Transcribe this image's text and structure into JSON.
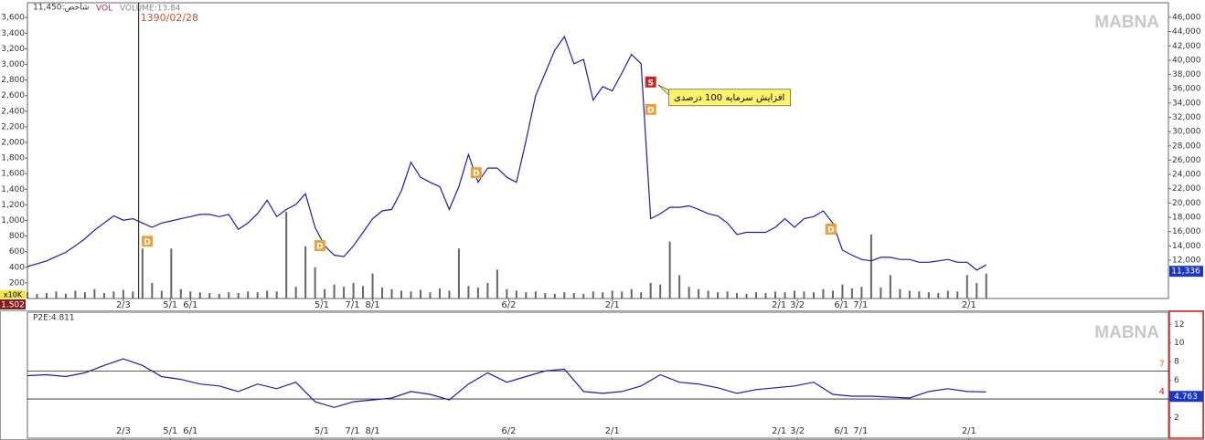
{
  "watermark": "MABNA",
  "chart_data": [
    {
      "type": "line",
      "title": "شاخص:11,450",
      "volume_title": "VOLUME:13.84",
      "volume_unit": "x10K",
      "volume_last": "1.502",
      "crosshair": {
        "x": 11.6,
        "label": "1390/02/28"
      },
      "annotation": "افزایش سرمایه 100 درصدی",
      "events": [
        {
          "label": "D",
          "x": 12.5
        },
        {
          "label": "D",
          "x": 30.5
        },
        {
          "label": "D",
          "x": 46.8
        },
        {
          "label": "S",
          "x": 65
        },
        {
          "label": "D",
          "x": 65
        },
        {
          "label": "D",
          "x": 83.8
        }
      ],
      "x": [
        0,
        1,
        2,
        3,
        4,
        5,
        6,
        7,
        8,
        9,
        10,
        11,
        12,
        13,
        14,
        15,
        16,
        17,
        18,
        19,
        20,
        21,
        22,
        23,
        24,
        25,
        26,
        27,
        28,
        29,
        30,
        31,
        32,
        33,
        34,
        35,
        36,
        37,
        38,
        39,
        40,
        41,
        42,
        43,
        44,
        45,
        46,
        47,
        48,
        49,
        50,
        51,
        52,
        53,
        54,
        55,
        56,
        57,
        58,
        59,
        60,
        61,
        62,
        63,
        64,
        65,
        66,
        67,
        68,
        69,
        70,
        71,
        72,
        73,
        74,
        75,
        76,
        77,
        78,
        79,
        80,
        81,
        82,
        83,
        84,
        85,
        86,
        87,
        88,
        89,
        90,
        91,
        92,
        93,
        94,
        95,
        96,
        97,
        98,
        99,
        100
      ],
      "xlim": [
        0,
        119
      ],
      "xticks": [
        {
          "value": 10,
          "label": "2/3"
        },
        {
          "value": 14.9,
          "label": "5/1"
        },
        {
          "value": 17,
          "label": "6/1"
        },
        {
          "value": 30.7,
          "label": "5/1"
        },
        {
          "value": 33.9,
          "label": "7/1"
        },
        {
          "value": 36,
          "label": "8/1"
        },
        {
          "value": 50.2,
          "label": "6/2"
        },
        {
          "value": 61,
          "label": "2/1"
        },
        {
          "value": 78.4,
          "label": "2/1"
        },
        {
          "value": 80.3,
          "label": "3/2"
        },
        {
          "value": 84.9,
          "label": "6/1"
        },
        {
          "value": 86.9,
          "label": "7/1"
        },
        {
          "value": 98.2,
          "label": "2/1"
        }
      ],
      "ylim": [
        0,
        3790
      ],
      "yticks": [
        200,
        400,
        600,
        800,
        {
          "value": 1000,
          "label": "1,000"
        },
        {
          "value": 1200,
          "label": "1,200"
        },
        {
          "value": 1400,
          "label": "1,400"
        },
        {
          "value": 1600,
          "label": "1,600"
        },
        {
          "value": 1800,
          "label": "1,800"
        },
        {
          "value": 2000,
          "label": "2,000"
        },
        {
          "value": 2200,
          "label": "2,200"
        },
        {
          "value": 2400,
          "label": "2,400"
        },
        {
          "value": 2600,
          "label": "2,600"
        },
        {
          "value": 2800,
          "label": "2,800"
        },
        {
          "value": 3000,
          "label": "3,000"
        },
        {
          "value": 3200,
          "label": "3,200"
        },
        {
          "value": 3400,
          "label": "3,400"
        },
        {
          "value": 3600,
          "label": "3,600"
        }
      ],
      "y2lim": [
        6630,
        48040
      ],
      "y2ticks": [
        {
          "value": 12000,
          "label": "12,000"
        },
        {
          "value": 14000,
          "label": "14,000"
        },
        {
          "value": 16000,
          "label": "16,000"
        },
        {
          "value": 18000,
          "label": "18,000"
        },
        {
          "value": 20000,
          "label": "20,000"
        },
        {
          "value": 22000,
          "label": "22,000"
        },
        {
          "value": 24000,
          "label": "24,000"
        },
        {
          "value": 26000,
          "label": "26,000"
        },
        {
          "value": 28000,
          "label": "28,000"
        },
        {
          "value": 30000,
          "label": "30,000"
        },
        {
          "value": 32000,
          "label": "32,000"
        },
        {
          "value": 34000,
          "label": "34,000"
        },
        {
          "value": 36000,
          "label": "36,000"
        },
        {
          "value": 38000,
          "label": "38,000"
        },
        {
          "value": 40000,
          "label": "40,000"
        },
        {
          "value": 42000,
          "label": "42,000"
        },
        {
          "value": 44000,
          "label": "44,000"
        },
        {
          "value": 46000,
          "label": "46,000"
        }
      ],
      "series": [
        {
          "type": "bar",
          "name": "VOL",
          "color": "#666666",
          "values": [
            80,
            60,
            70,
            90,
            60,
            100,
            80,
            120,
            70,
            90,
            110,
            90,
            640,
            200,
            100,
            640,
            120,
            90,
            80,
            70,
            60,
            80,
            70,
            90,
            80,
            100,
            90,
            1110,
            150,
            670,
            400,
            120,
            180,
            150,
            200,
            160,
            320,
            140,
            120,
            100,
            90,
            110,
            80,
            130,
            100,
            640,
            160,
            140,
            200,
            370,
            120,
            100,
            80,
            90,
            70,
            60,
            80,
            70,
            60,
            90,
            80,
            100,
            90,
            120,
            80,
            200,
            180,
            730,
            300,
            150,
            120,
            100,
            80,
            90,
            70,
            60,
            80,
            70,
            90,
            80,
            100,
            90,
            80,
            120,
            100,
            180,
            130,
            150,
            820,
            140,
            300,
            120,
            100,
            90,
            80,
            70,
            100,
            90,
            300,
            200,
            320
          ]
        },
        {
          "type": "line",
          "axis": "y2",
          "color": "#1c1cb4",
          "end_label": "11,336",
          "values": [
            11100,
            11500,
            11900,
            12500,
            13100,
            14000,
            15000,
            16200,
            17200,
            18200,
            17600,
            17800,
            17200,
            16600,
            17200,
            17500,
            17800,
            18100,
            18400,
            18400,
            18100,
            18400,
            16300,
            17200,
            18500,
            20400,
            18100,
            19100,
            19800,
            21300,
            16600,
            14000,
            12700,
            12500,
            14000,
            15900,
            17800,
            18900,
            19100,
            21700,
            25700,
            23600,
            22900,
            22300,
            19100,
            22300,
            26800,
            22900,
            24900,
            24900,
            23600,
            22900,
            28700,
            35000,
            38200,
            41400,
            43300,
            39500,
            40100,
            34400,
            36300,
            35700,
            38200,
            40800,
            39500,
            17800,
            18500,
            19400,
            19400,
            19600,
            19100,
            18500,
            18200,
            17200,
            15600,
            15900,
            15900,
            15900,
            16600,
            17800,
            16600,
            17800,
            18100,
            18900,
            17200,
            13400,
            12700,
            12100,
            11900,
            12400,
            12400,
            12100,
            12100,
            11700,
            11700,
            11900,
            12100,
            11700,
            11700,
            10600,
            11336
          ]
        }
      ]
    },
    {
      "type": "line",
      "title": "P2E:4.811",
      "x": [
        0,
        2,
        4,
        6,
        8,
        10,
        12,
        14,
        16,
        18,
        20,
        22,
        24,
        26,
        28,
        30,
        32,
        34,
        36,
        38,
        40,
        42,
        44,
        46,
        48,
        50,
        52,
        54,
        56,
        58,
        60,
        62,
        64,
        66,
        68,
        70,
        72,
        74,
        76,
        78,
        80,
        82,
        84,
        86,
        88,
        90,
        92,
        94,
        96,
        98,
        100
      ],
      "xlim": [
        0,
        119
      ],
      "ylim": [
        -0.2,
        13.3
      ],
      "yticks": [
        2,
        4,
        6,
        8,
        10,
        12
      ],
      "levels": [
        7,
        4
      ],
      "level_colors": [
        "#e07b20",
        "#d42020"
      ],
      "series": [
        {
          "type": "line",
          "color": "#1c1cb4",
          "end_label": "4.763",
          "values": [
            6.5,
            6.6,
            6.4,
            6.8,
            7.6,
            8.3,
            7.6,
            6.4,
            6.1,
            5.6,
            5.4,
            4.8,
            5.6,
            5.1,
            5.8,
            3.7,
            3.1,
            3.7,
            3.9,
            4.1,
            4.8,
            4.5,
            3.9,
            5.6,
            6.8,
            5.8,
            6.4,
            7.0,
            7.2,
            4.8,
            4.6,
            4.8,
            5.4,
            6.6,
            5.8,
            5.6,
            5.2,
            4.6,
            5.0,
            5.2,
            5.4,
            5.8,
            4.5,
            4.3,
            4.3,
            4.2,
            4.1,
            4.8,
            5.1,
            4.8,
            4.763
          ]
        }
      ]
    }
  ]
}
